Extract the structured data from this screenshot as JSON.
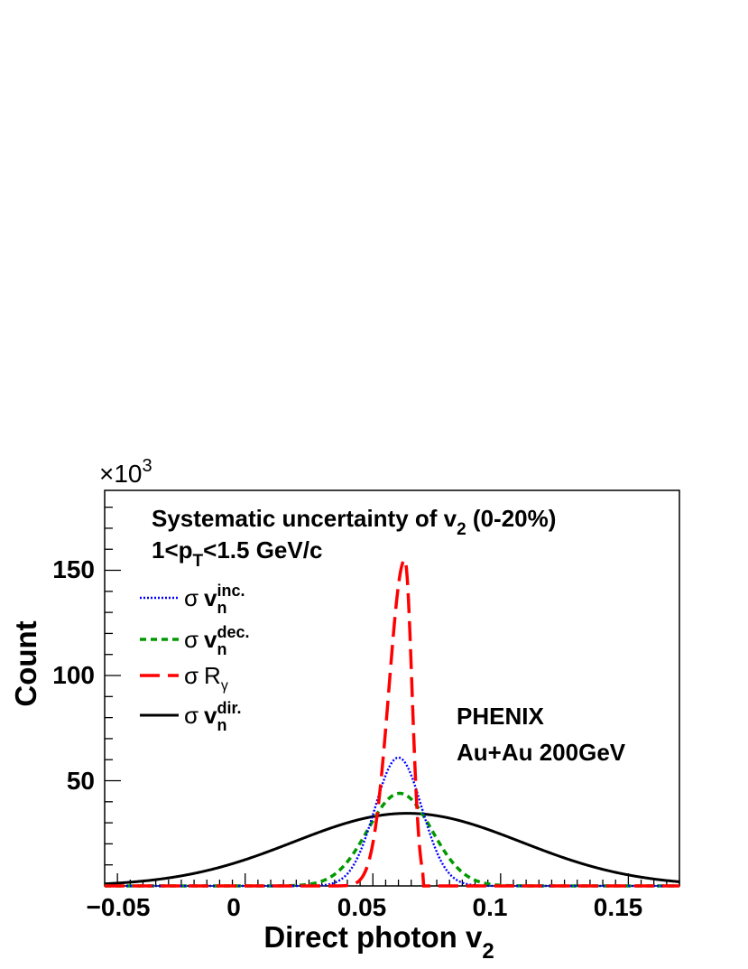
{
  "chart_data": {
    "type": "line",
    "title": "",
    "xlabel": {
      "main": "Direct photon v",
      "sub": "2"
    },
    "ylabel": "Count",
    "xlim": [
      -0.055,
      0.17
    ],
    "ylim": [
      0,
      188000
    ],
    "y_multiplier_label": {
      "times": "×10",
      "exp": "3"
    },
    "x_tick_values": [
      -0.05,
      0,
      0.05,
      0.1,
      0.15
    ],
    "x_tick_labels": [
      "−0.05",
      "0",
      "0.05",
      "0.1",
      "0.15"
    ],
    "y_tick_values": [
      50000,
      100000,
      150000
    ],
    "y_tick_labels": [
      "50",
      "100",
      "150"
    ],
    "annotations": {
      "line1": {
        "main": "Systematic uncertainty of v",
        "sub": "2",
        "tail": " (0-20%)"
      },
      "line2": {
        "pre": "1<p",
        "sub": "T",
        "tail": "<1.5 GeV/c"
      },
      "experiment": "PHENIX",
      "system": "Au+Au 200GeV"
    },
    "series": [
      {
        "name": "σ v_n^inc.",
        "legend_symbol": "σ",
        "legend_base": "v",
        "legend_sub": "n",
        "legend_sup": "inc.",
        "color": "#0000ff",
        "dash": "dotted",
        "shape": "gaussian",
        "mean": 0.06,
        "sigma": 0.0092,
        "amplitude": 61000
      },
      {
        "name": "σ v_n^dec.",
        "legend_symbol": "σ",
        "legend_base": "v",
        "legend_sub": "n",
        "legend_sup": "dec.",
        "color": "#009900",
        "dash": "dashed",
        "shape": "gaussian",
        "mean": 0.0605,
        "sigma": 0.0125,
        "amplitude": 44000
      },
      {
        "name": "σ R_γ",
        "legend_symbol": "σ",
        "legend_base": "R",
        "legend_sub": "γ",
        "legend_sup": "",
        "color": "#ff0000",
        "dash": "longdash",
        "shape": "skewed",
        "mean": 0.0625,
        "sigma_left": 0.0062,
        "sigma_right": 0.0028,
        "upper_cutoff": 0.0695,
        "amplitude": 155000
      },
      {
        "name": "σ v_n^dir.",
        "legend_symbol": "σ",
        "legend_base": "v",
        "legend_sub": "n",
        "legend_sup": "dir.",
        "color": "#000000",
        "dash": "solid",
        "shape": "gaussian",
        "mean": 0.0635,
        "sigma": 0.0445,
        "amplitude": 34500
      }
    ]
  }
}
